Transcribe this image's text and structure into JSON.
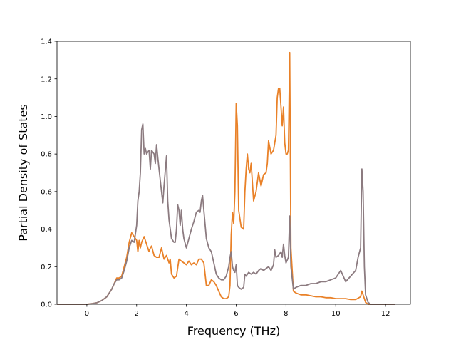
{
  "chart_data": {
    "type": "line",
    "title": "",
    "xlabel": "Frequency (THz)",
    "ylabel": "Partial Density of States",
    "xlim": [
      -1.2,
      13.0
    ],
    "ylim": [
      0.0,
      1.4
    ],
    "xticks": [
      0,
      2,
      4,
      6,
      8,
      10,
      12
    ],
    "xtick_labels": [
      "0",
      "2",
      "4",
      "6",
      "8",
      "10",
      "12"
    ],
    "yticks": [
      0.0,
      0.2,
      0.4,
      0.6,
      0.8,
      1.0,
      1.2,
      1.4
    ],
    "ytick_labels": [
      "0.0",
      "0.2",
      "0.4",
      "0.6",
      "0.8",
      "1.0",
      "1.2",
      "1.4"
    ],
    "grid": false,
    "legend": "none",
    "series": [
      {
        "color": "#e98128",
        "points": [
          [
            -1.2,
            0.0
          ],
          [
            0.0,
            0.0
          ],
          [
            0.2,
            0.003
          ],
          [
            0.4,
            0.008
          ],
          [
            0.6,
            0.02
          ],
          [
            0.8,
            0.04
          ],
          [
            1.0,
            0.08
          ],
          [
            1.1,
            0.11
          ],
          [
            1.2,
            0.14
          ],
          [
            1.3,
            0.14
          ],
          [
            1.4,
            0.15
          ],
          [
            1.5,
            0.2
          ],
          [
            1.6,
            0.25
          ],
          [
            1.7,
            0.33
          ],
          [
            1.8,
            0.38
          ],
          [
            1.9,
            0.36
          ],
          [
            2.0,
            0.34
          ],
          [
            2.05,
            0.28
          ],
          [
            2.1,
            0.34
          ],
          [
            2.15,
            0.3
          ],
          [
            2.2,
            0.33
          ],
          [
            2.3,
            0.36
          ],
          [
            2.4,
            0.32
          ],
          [
            2.5,
            0.28
          ],
          [
            2.55,
            0.3
          ],
          [
            2.6,
            0.31
          ],
          [
            2.7,
            0.26
          ],
          [
            2.8,
            0.25
          ],
          [
            2.9,
            0.25
          ],
          [
            3.0,
            0.3
          ],
          [
            3.1,
            0.24
          ],
          [
            3.2,
            0.26
          ],
          [
            3.3,
            0.22
          ],
          [
            3.35,
            0.24
          ],
          [
            3.4,
            0.16
          ],
          [
            3.5,
            0.14
          ],
          [
            3.6,
            0.15
          ],
          [
            3.7,
            0.24
          ],
          [
            3.8,
            0.23
          ],
          [
            3.9,
            0.22
          ],
          [
            4.0,
            0.21
          ],
          [
            4.1,
            0.23
          ],
          [
            4.2,
            0.21
          ],
          [
            4.3,
            0.22
          ],
          [
            4.4,
            0.21
          ],
          [
            4.5,
            0.24
          ],
          [
            4.6,
            0.24
          ],
          [
            4.7,
            0.22
          ],
          [
            4.8,
            0.1
          ],
          [
            4.9,
            0.1
          ],
          [
            5.0,
            0.13
          ],
          [
            5.1,
            0.12
          ],
          [
            5.2,
            0.1
          ],
          [
            5.3,
            0.07
          ],
          [
            5.4,
            0.04
          ],
          [
            5.5,
            0.03
          ],
          [
            5.6,
            0.03
          ],
          [
            5.7,
            0.04
          ],
          [
            5.75,
            0.1
          ],
          [
            5.8,
            0.37
          ],
          [
            5.85,
            0.49
          ],
          [
            5.9,
            0.43
          ],
          [
            5.95,
            0.6
          ],
          [
            6.0,
            1.07
          ],
          [
            6.05,
            0.95
          ],
          [
            6.1,
            0.5
          ],
          [
            6.2,
            0.41
          ],
          [
            6.3,
            0.4
          ],
          [
            6.35,
            0.6
          ],
          [
            6.4,
            0.72
          ],
          [
            6.45,
            0.8
          ],
          [
            6.5,
            0.72
          ],
          [
            6.55,
            0.7
          ],
          [
            6.6,
            0.75
          ],
          [
            6.7,
            0.55
          ],
          [
            6.8,
            0.6
          ],
          [
            6.9,
            0.7
          ],
          [
            7.0,
            0.63
          ],
          [
            7.1,
            0.69
          ],
          [
            7.2,
            0.7
          ],
          [
            7.25,
            0.75
          ],
          [
            7.3,
            0.87
          ],
          [
            7.4,
            0.8
          ],
          [
            7.5,
            0.82
          ],
          [
            7.6,
            0.9
          ],
          [
            7.65,
            1.1
          ],
          [
            7.7,
            1.15
          ],
          [
            7.75,
            1.15
          ],
          [
            7.8,
            1.05
          ],
          [
            7.85,
            0.95
          ],
          [
            7.9,
            1.05
          ],
          [
            7.95,
            0.86
          ],
          [
            8.0,
            0.8
          ],
          [
            8.05,
            0.8
          ],
          [
            8.1,
            0.82
          ],
          [
            8.15,
            1.34
          ],
          [
            8.2,
            0.3
          ],
          [
            8.3,
            0.07
          ],
          [
            8.4,
            0.06
          ],
          [
            8.6,
            0.05
          ],
          [
            8.8,
            0.05
          ],
          [
            9.0,
            0.045
          ],
          [
            9.2,
            0.04
          ],
          [
            9.4,
            0.04
          ],
          [
            9.6,
            0.035
          ],
          [
            9.8,
            0.035
          ],
          [
            10.0,
            0.03
          ],
          [
            10.2,
            0.03
          ],
          [
            10.4,
            0.03
          ],
          [
            10.6,
            0.025
          ],
          [
            10.8,
            0.025
          ],
          [
            11.0,
            0.04
          ],
          [
            11.05,
            0.07
          ],
          [
            11.1,
            0.05
          ],
          [
            11.2,
            0.01
          ],
          [
            11.3,
            0.0
          ],
          [
            12.4,
            0.0
          ]
        ]
      },
      {
        "color": "#8c7b80",
        "points": [
          [
            -1.2,
            0.0
          ],
          [
            0.0,
            0.0
          ],
          [
            0.2,
            0.003
          ],
          [
            0.4,
            0.008
          ],
          [
            0.6,
            0.02
          ],
          [
            0.8,
            0.04
          ],
          [
            1.0,
            0.08
          ],
          [
            1.1,
            0.11
          ],
          [
            1.2,
            0.13
          ],
          [
            1.3,
            0.13
          ],
          [
            1.4,
            0.14
          ],
          [
            1.5,
            0.18
          ],
          [
            1.6,
            0.23
          ],
          [
            1.7,
            0.3
          ],
          [
            1.8,
            0.34
          ],
          [
            1.9,
            0.33
          ],
          [
            2.0,
            0.42
          ],
          [
            2.05,
            0.55
          ],
          [
            2.1,
            0.6
          ],
          [
            2.15,
            0.7
          ],
          [
            2.2,
            0.93
          ],
          [
            2.25,
            0.96
          ],
          [
            2.3,
            0.8
          ],
          [
            2.35,
            0.83
          ],
          [
            2.4,
            0.8
          ],
          [
            2.5,
            0.82
          ],
          [
            2.55,
            0.72
          ],
          [
            2.6,
            0.82
          ],
          [
            2.7,
            0.8
          ],
          [
            2.75,
            0.75
          ],
          [
            2.8,
            0.85
          ],
          [
            2.85,
            0.78
          ],
          [
            2.9,
            0.72
          ],
          [
            3.0,
            0.6
          ],
          [
            3.05,
            0.54
          ],
          [
            3.1,
            0.63
          ],
          [
            3.2,
            0.79
          ],
          [
            3.25,
            0.55
          ],
          [
            3.3,
            0.45
          ],
          [
            3.4,
            0.35
          ],
          [
            3.5,
            0.33
          ],
          [
            3.55,
            0.33
          ],
          [
            3.6,
            0.4
          ],
          [
            3.65,
            0.53
          ],
          [
            3.7,
            0.5
          ],
          [
            3.75,
            0.42
          ],
          [
            3.8,
            0.5
          ],
          [
            3.85,
            0.4
          ],
          [
            3.9,
            0.35
          ],
          [
            4.0,
            0.3
          ],
          [
            4.1,
            0.35
          ],
          [
            4.2,
            0.4
          ],
          [
            4.3,
            0.44
          ],
          [
            4.4,
            0.49
          ],
          [
            4.5,
            0.5
          ],
          [
            4.55,
            0.49
          ],
          [
            4.6,
            0.55
          ],
          [
            4.65,
            0.58
          ],
          [
            4.7,
            0.5
          ],
          [
            4.8,
            0.35
          ],
          [
            4.9,
            0.3
          ],
          [
            5.0,
            0.28
          ],
          [
            5.1,
            0.22
          ],
          [
            5.2,
            0.16
          ],
          [
            5.3,
            0.14
          ],
          [
            5.4,
            0.13
          ],
          [
            5.5,
            0.13
          ],
          [
            5.6,
            0.15
          ],
          [
            5.7,
            0.2
          ],
          [
            5.75,
            0.25
          ],
          [
            5.8,
            0.28
          ],
          [
            5.85,
            0.2
          ],
          [
            5.9,
            0.18
          ],
          [
            5.95,
            0.17
          ],
          [
            6.0,
            0.21
          ],
          [
            6.05,
            0.1
          ],
          [
            6.1,
            0.09
          ],
          [
            6.2,
            0.08
          ],
          [
            6.3,
            0.09
          ],
          [
            6.35,
            0.16
          ],
          [
            6.4,
            0.15
          ],
          [
            6.5,
            0.17
          ],
          [
            6.6,
            0.16
          ],
          [
            6.7,
            0.17
          ],
          [
            6.8,
            0.16
          ],
          [
            6.9,
            0.18
          ],
          [
            7.0,
            0.19
          ],
          [
            7.1,
            0.18
          ],
          [
            7.2,
            0.19
          ],
          [
            7.3,
            0.2
          ],
          [
            7.4,
            0.18
          ],
          [
            7.5,
            0.21
          ],
          [
            7.55,
            0.29
          ],
          [
            7.6,
            0.25
          ],
          [
            7.7,
            0.26
          ],
          [
            7.8,
            0.28
          ],
          [
            7.85,
            0.25
          ],
          [
            7.9,
            0.32
          ],
          [
            7.95,
            0.26
          ],
          [
            8.0,
            0.22
          ],
          [
            8.1,
            0.25
          ],
          [
            8.15,
            0.47
          ],
          [
            8.2,
            0.2
          ],
          [
            8.3,
            0.08
          ],
          [
            8.4,
            0.09
          ],
          [
            8.6,
            0.1
          ],
          [
            8.8,
            0.1
          ],
          [
            9.0,
            0.11
          ],
          [
            9.2,
            0.11
          ],
          [
            9.4,
            0.12
          ],
          [
            9.6,
            0.12
          ],
          [
            9.8,
            0.13
          ],
          [
            10.0,
            0.14
          ],
          [
            10.2,
            0.18
          ],
          [
            10.4,
            0.12
          ],
          [
            10.6,
            0.15
          ],
          [
            10.8,
            0.18
          ],
          [
            10.9,
            0.25
          ],
          [
            11.0,
            0.3
          ],
          [
            11.05,
            0.72
          ],
          [
            11.1,
            0.6
          ],
          [
            11.15,
            0.2
          ],
          [
            11.2,
            0.05
          ],
          [
            11.3,
            0.01
          ],
          [
            11.4,
            0.0
          ],
          [
            12.4,
            0.0
          ]
        ]
      }
    ]
  }
}
